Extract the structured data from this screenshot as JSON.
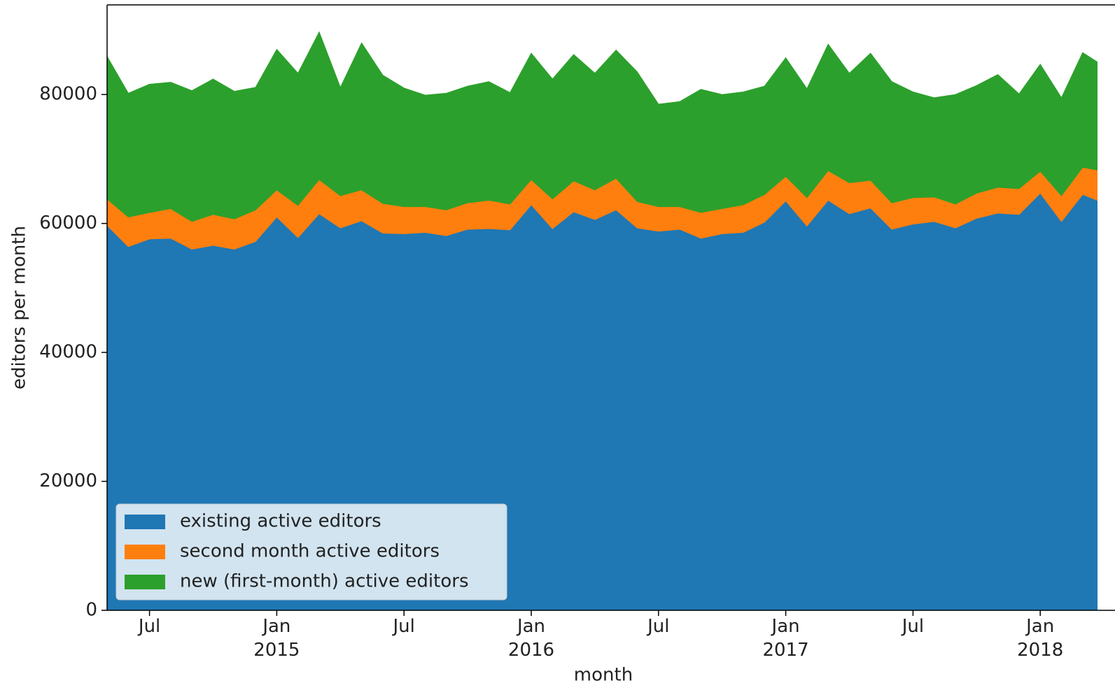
{
  "chart_data": {
    "type": "stacked_area",
    "x_label": "month",
    "y_label": "editors per month",
    "x": [
      "2014-05",
      "2014-06",
      "2014-07",
      "2014-08",
      "2014-09",
      "2014-10",
      "2014-11",
      "2014-12",
      "2015-01",
      "2015-02",
      "2015-03",
      "2015-04",
      "2015-05",
      "2015-06",
      "2015-07",
      "2015-08",
      "2015-09",
      "2015-10",
      "2015-11",
      "2015-12",
      "2016-01",
      "2016-02",
      "2016-03",
      "2016-04",
      "2016-05",
      "2016-06",
      "2016-07",
      "2016-08",
      "2016-09",
      "2016-10",
      "2016-11",
      "2016-12",
      "2017-01",
      "2017-02",
      "2017-03",
      "2017-04",
      "2017-05",
      "2017-06",
      "2017-07",
      "2017-08",
      "2017-09",
      "2017-10",
      "2017-11",
      "2017-12",
      "2018-01",
      "2018-02",
      "2018-03",
      "2018-04"
    ],
    "series": [
      {
        "name": "existing active editors",
        "color": "#1f77b4",
        "values": [
          59700,
          56400,
          57600,
          57700,
          56000,
          56600,
          56000,
          57200,
          61000,
          57800,
          61500,
          59300,
          60400,
          58500,
          58400,
          58600,
          58100,
          59100,
          59200,
          59000,
          62900,
          59200,
          61800,
          60600,
          62100,
          59300,
          58800,
          59100,
          57700,
          58400,
          58600,
          60200,
          63500,
          59600,
          63600,
          61500,
          62400,
          59100,
          59900,
          60300,
          59300,
          60800,
          61600,
          61400,
          64700,
          60300,
          64500,
          63200
        ]
      },
      {
        "name": "second month active editors",
        "color": "#ff7f0e",
        "values": [
          4100,
          4600,
          4100,
          4600,
          4300,
          4800,
          4700,
          4900,
          4200,
          5000,
          5300,
          5000,
          4800,
          4600,
          4200,
          4000,
          4000,
          4100,
          4400,
          4000,
          3900,
          4600,
          4800,
          4600,
          4900,
          4100,
          3800,
          3500,
          4000,
          3900,
          4300,
          4300,
          3800,
          4400,
          4600,
          4800,
          4300,
          4100,
          4100,
          3800,
          3700,
          3900,
          4000,
          4000,
          3400,
          4000,
          4200,
          4900
        ]
      },
      {
        "name": "new (first-month) active editors",
        "color": "#2ca02c",
        "values": [
          22100,
          19200,
          19900,
          19600,
          20300,
          21000,
          19800,
          19000,
          21800,
          20500,
          22900,
          16800,
          22800,
          19900,
          18400,
          17300,
          18100,
          18100,
          18400,
          17300,
          19600,
          18600,
          19600,
          18100,
          19900,
          20100,
          15900,
          16300,
          19100,
          17700,
          17500,
          16800,
          18400,
          16900,
          19600,
          17000,
          19700,
          18800,
          16400,
          15400,
          17000,
          16700,
          17500,
          14700,
          16600,
          15200,
          17800,
          16300
        ]
      }
    ],
    "xlim": [
      "2014-05",
      "2018-04"
    ],
    "xticks": [
      {
        "value": "2014-07",
        "label": "Jul"
      },
      {
        "value": "2015-01",
        "label": "Jan\n2015"
      },
      {
        "value": "2015-07",
        "label": "Jul"
      },
      {
        "value": "2016-01",
        "label": "Jan\n2016"
      },
      {
        "value": "2016-07",
        "label": "Jul"
      },
      {
        "value": "2017-01",
        "label": "Jan\n2017"
      },
      {
        "value": "2017-07",
        "label": "Jul"
      },
      {
        "value": "2018-01",
        "label": "Jan\n2018"
      }
    ],
    "ylim": [
      0,
      93900
    ],
    "yticks": [
      0,
      20000,
      40000,
      60000,
      80000
    ],
    "legend": "lower left"
  }
}
